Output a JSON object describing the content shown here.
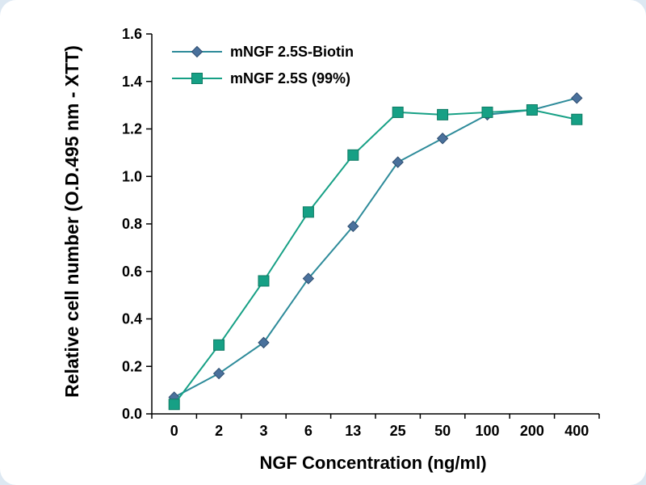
{
  "chart_data": {
    "type": "line",
    "title": "",
    "xlabel": "NGF Concentration (ng/ml)",
    "ylabel": "Relative cell number (O.D.495 nm - XTT)",
    "categories": [
      "0",
      "2",
      "3",
      "6",
      "13",
      "25",
      "50",
      "100",
      "200",
      "400"
    ],
    "series": [
      {
        "name": "mNGF 2.5S-Biotin",
        "marker": "diamond",
        "line_color": "#2e8b9a",
        "marker_color": "#4a719c",
        "values": [
          0.07,
          0.17,
          0.3,
          0.57,
          0.79,
          1.06,
          1.16,
          1.26,
          1.28,
          1.33
        ]
      },
      {
        "name": "mNGF 2.5S (99%)",
        "marker": "square",
        "line_color": "#16a085",
        "marker_color": "#16a085",
        "values": [
          0.04,
          0.29,
          0.56,
          0.85,
          1.09,
          1.27,
          1.26,
          1.27,
          1.28,
          1.24
        ]
      }
    ],
    "ylim": [
      0,
      1.6
    ],
    "ytick_step": 0.2,
    "ytick_decimals": 1,
    "grid": false,
    "legend_position": "top-left",
    "axis_color": "#000000",
    "background_color": "#ffffff"
  }
}
